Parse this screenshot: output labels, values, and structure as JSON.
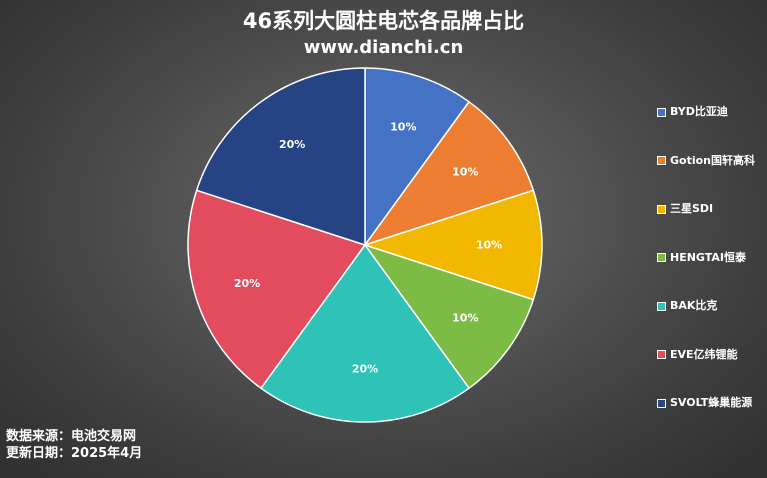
{
  "chart_data": {
    "type": "pie",
    "title": "46系列大圆柱电芯各品牌占比",
    "subtitle": "www.dianchi.cn",
    "categories": [
      "BYD比亚迪",
      "Gotion国轩高科",
      "三星SDI",
      "HENGTAI恒泰",
      "BAK比克",
      "EVE亿纬锂能",
      "SVOLT蜂巢能源"
    ],
    "values": [
      10,
      10,
      10,
      10,
      20,
      20,
      20
    ],
    "data_labels": [
      "10%",
      "10%",
      "10%",
      "10%",
      "20%",
      "20%",
      "20%"
    ],
    "colors": [
      "#4472C4",
      "#ED7D31",
      "#F2B800",
      "#7CBB44",
      "#2EC3B6",
      "#E34C5E",
      "#264383"
    ],
    "legend_placement": "right",
    "start_angle": "12 o'clock, clockwise"
  },
  "footer": {
    "source": "数据来源：电池交易网",
    "date": "更新日期：2025年4月"
  }
}
